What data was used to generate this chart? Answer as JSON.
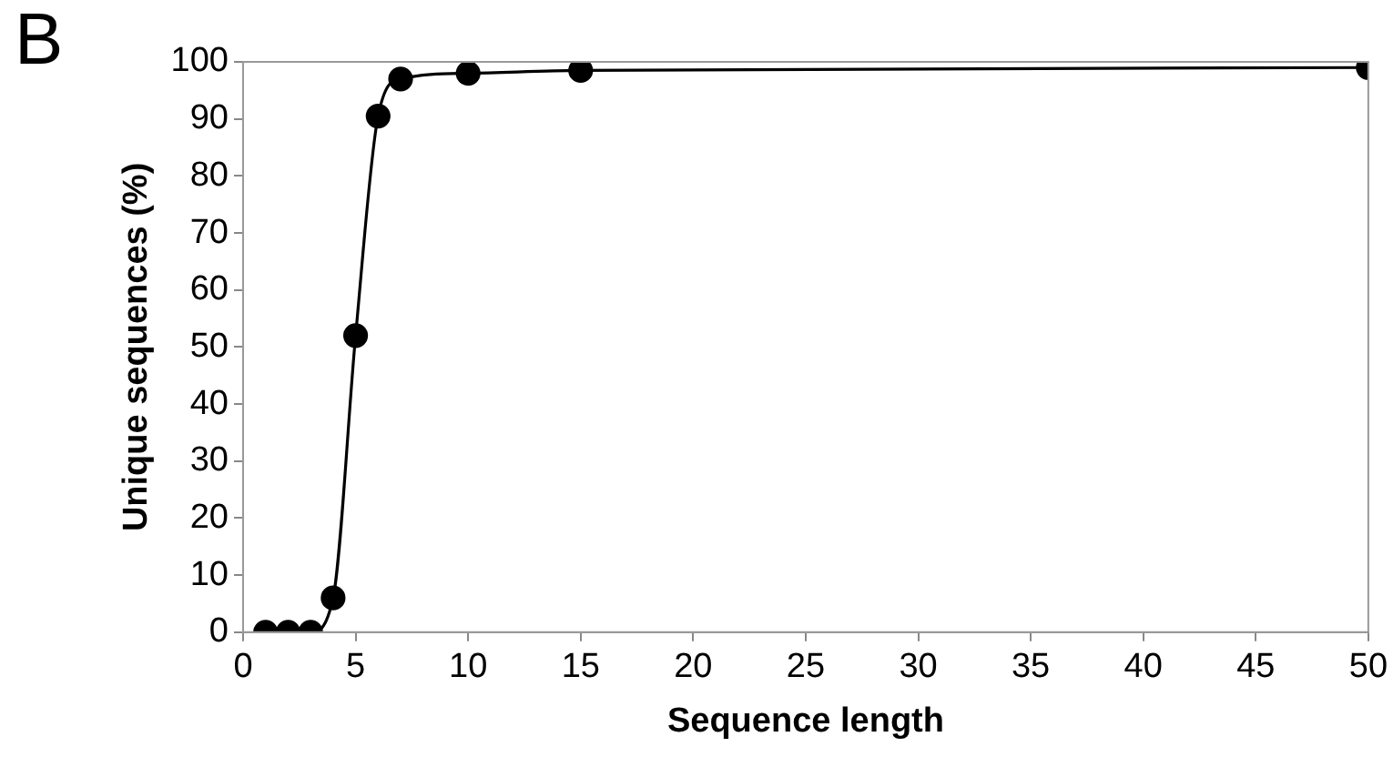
{
  "chart_data": {
    "type": "line",
    "xlabel": "Sequence length",
    "ylabel": "Unique sequences (%)",
    "annotations": [
      "B"
    ],
    "x": [
      1,
      2,
      3,
      4,
      5,
      6,
      7,
      10,
      15,
      50
    ],
    "series": [
      {
        "color": "#000000",
        "values": [
          0,
          0,
          0,
          6,
          52,
          90.5,
          97,
          98,
          98.5,
          99
        ]
      }
    ],
    "xlim": [
      0,
      50
    ],
    "xticks": [
      0,
      5,
      10,
      15,
      20,
      25,
      30,
      35,
      40,
      45,
      50
    ],
    "ylim": [
      0,
      100
    ],
    "yticks": [
      0,
      10,
      20,
      30,
      40,
      50,
      60,
      70,
      80,
      90,
      100
    ],
    "grid": false,
    "legend": false,
    "marker": "circle",
    "line_style": "solid"
  }
}
